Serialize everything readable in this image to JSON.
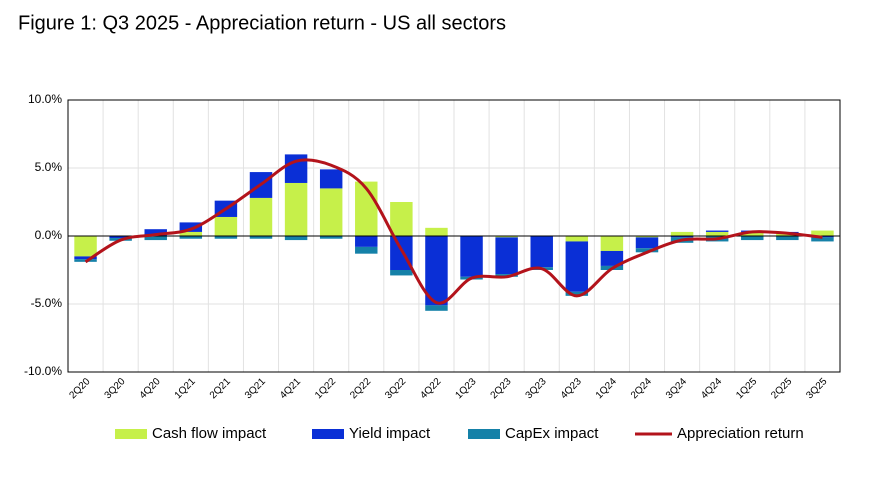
{
  "chart_data": {
    "type": "bar-line",
    "title": "Figure 1: Q3 2025 - Appreciation return - US all sectors",
    "categories": [
      "2Q20",
      "3Q20",
      "4Q20",
      "1Q21",
      "2Q21",
      "3Q21",
      "4Q21",
      "1Q22",
      "2Q22",
      "3Q22",
      "4Q22",
      "1Q23",
      "2Q23",
      "3Q23",
      "4Q23",
      "1Q24",
      "2Q24",
      "3Q24",
      "4Q24",
      "1Q25",
      "2Q25",
      "3Q25"
    ],
    "series": [
      {
        "name": "Cash flow impact",
        "type": "bar",
        "color": "#c6f04a",
        "values": [
          -1.5,
          0,
          0,
          0.3,
          1.4,
          2.8,
          3.9,
          3.5,
          4.0,
          2.5,
          0.6,
          0,
          -0.1,
          0,
          -0.4,
          -1.1,
          -0.1,
          0.3,
          0.3,
          0.3,
          0.2,
          0.4
        ]
      },
      {
        "name": "Yield impact",
        "type": "bar",
        "color": "#0a2fd6",
        "values": [
          -0.2,
          -0.15,
          0.5,
          0.7,
          1.2,
          1.9,
          2.1,
          1.4,
          -0.8,
          -2.5,
          -5.1,
          -3.0,
          -2.7,
          -2.3,
          -3.7,
          -1.1,
          -0.8,
          -0.1,
          0.1,
          0.1,
          0.1,
          -0.1
        ]
      },
      {
        "name": "CapEx impact",
        "type": "bar",
        "color": "#1581a8",
        "values": [
          -0.2,
          -0.2,
          -0.3,
          -0.2,
          -0.2,
          -0.2,
          -0.3,
          -0.2,
          -0.5,
          -0.4,
          -0.4,
          -0.2,
          -0.2,
          -0.2,
          -0.3,
          -0.3,
          -0.3,
          -0.4,
          -0.4,
          -0.3,
          -0.3,
          -0.3
        ]
      },
      {
        "name": "Appreciation return",
        "type": "line",
        "color": "#b3131b",
        "values": [
          -1.9,
          -0.3,
          0.1,
          0.5,
          2.0,
          3.8,
          5.5,
          5.2,
          3.5,
          -1.0,
          -4.9,
          -3.1,
          -3.0,
          -2.4,
          -4.4,
          -2.4,
          -1.2,
          -0.3,
          -0.2,
          0.3,
          0.2,
          -0.1
        ]
      }
    ],
    "ylim": [
      -10,
      10
    ],
    "yticks": [
      {
        "value": -10,
        "label": "-10.0%"
      },
      {
        "value": -5,
        "label": "-5.0%"
      },
      {
        "value": 0,
        "label": "0.0%"
      },
      {
        "value": 5,
        "label": "5.0%"
      },
      {
        "value": 10,
        "label": "10.0%"
      }
    ],
    "grid": true,
    "legend": "bottom"
  }
}
